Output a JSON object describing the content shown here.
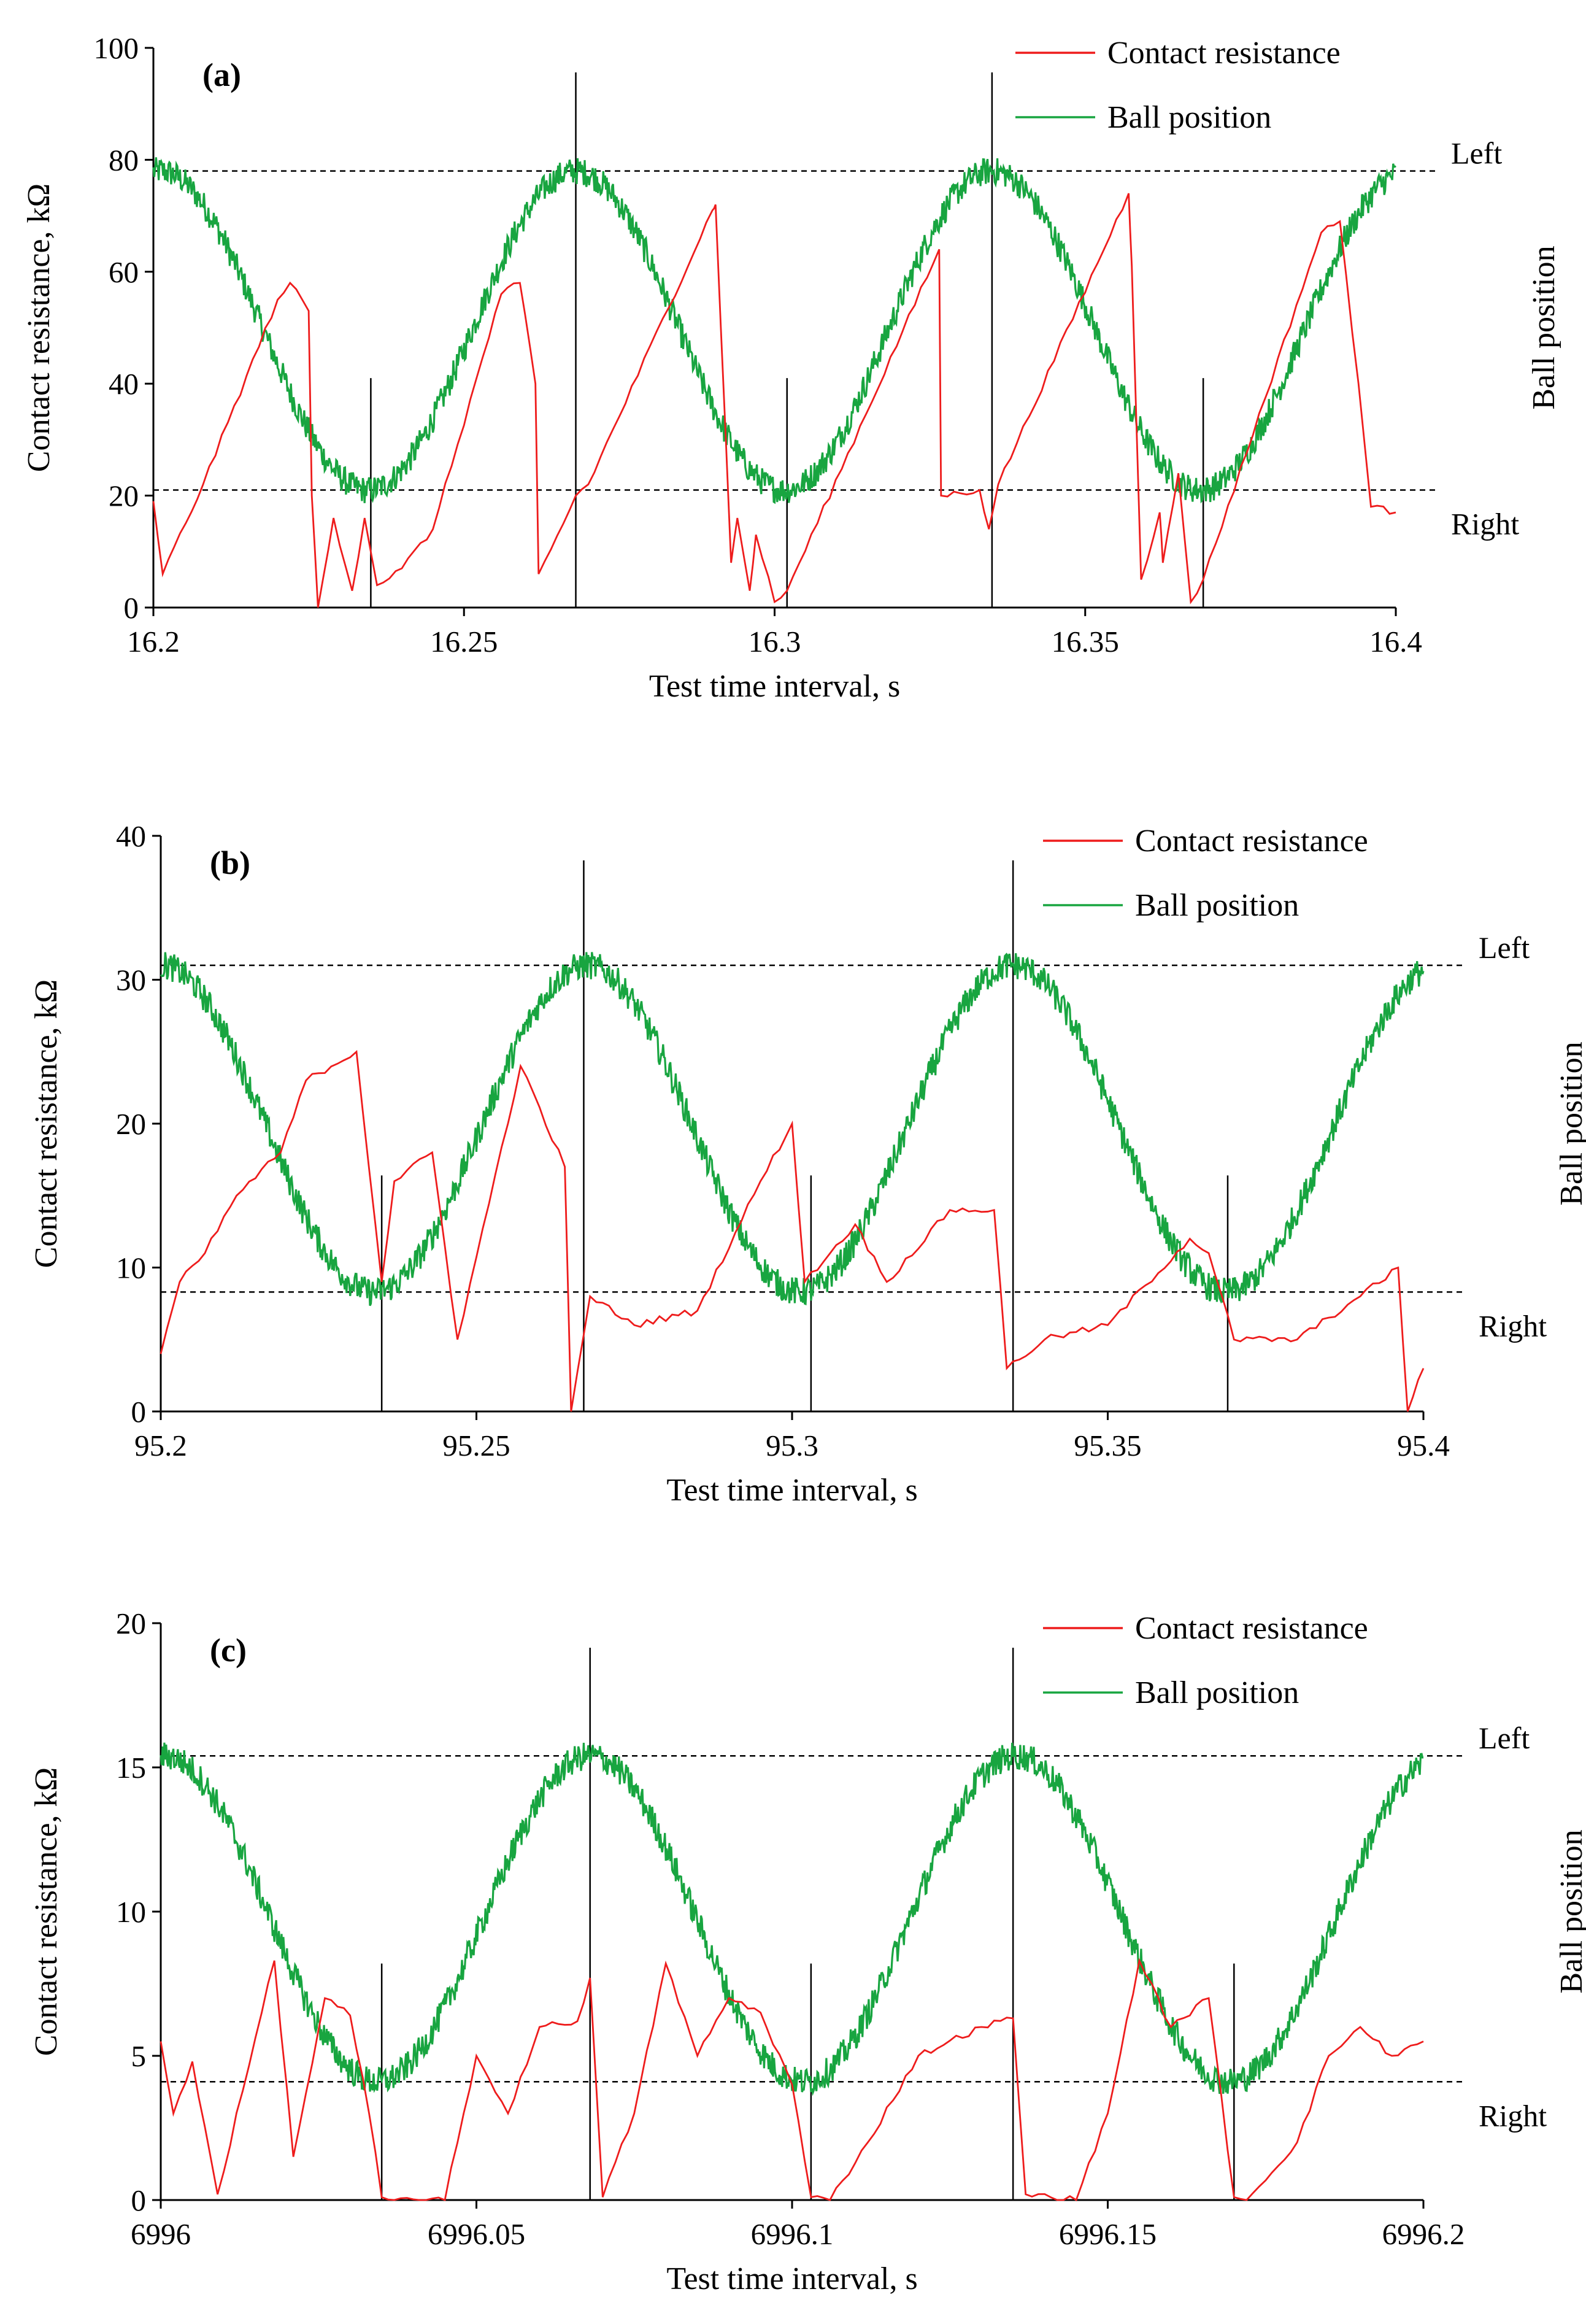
{
  "colors": {
    "contact_resistance": "#ee1c1c",
    "ball_position": "#18a540",
    "axis": "#000000",
    "markers": "#000000",
    "reference": "#000000"
  },
  "chart_data": [
    {
      "type": "line",
      "panel_label": "(a)",
      "xlabel": "Test time interval, s",
      "ylabel": "Contact resistance, kΩ",
      "y2label": "Ball position",
      "xlim": [
        16.2,
        16.4
      ],
      "ylim": [
        0,
        100
      ],
      "xticks": [
        16.2,
        16.25,
        16.3,
        16.35,
        16.4
      ],
      "xtick_labels": [
        "16.2",
        "16.25",
        "16.3",
        "16.35",
        "16.4"
      ],
      "yticks": [
        0,
        20,
        40,
        60,
        80,
        100
      ],
      "ytick_labels": [
        "0",
        "20",
        "40",
        "60",
        "80",
        "100"
      ],
      "legend": [
        "Contact resistance",
        "Ball position"
      ],
      "legend_position": "top-right",
      "reference_lines": [
        {
          "label": "Left",
          "y": 78
        },
        {
          "label": "Right",
          "y": 21
        }
      ],
      "position_extremes": {
        "left": 78,
        "right": 21
      },
      "marker_times": [
        16.235,
        16.268,
        16.302,
        16.335,
        16.369
      ],
      "series": [
        {
          "name": "Contact resistance",
          "x": [
            16.2,
            16.2015,
            16.208,
            16.22,
            16.222,
            16.225,
            16.2255,
            16.2265,
            16.229,
            16.232,
            16.234,
            16.236,
            16.24,
            16.245,
            16.256,
            16.259,
            16.2615,
            16.262,
            16.266,
            16.268,
            16.27,
            16.29,
            16.2905,
            16.293,
            16.294,
            16.296,
            16.297,
            16.3,
            16.302,
            16.3265,
            16.3268,
            16.333,
            16.3345,
            16.336,
            16.357,
            16.3575,
            16.359,
            16.362,
            16.3625,
            16.365,
            16.367,
            16.369,
            16.388,
            16.391,
            16.394,
            16.396,
            16.4
          ],
          "y": [
            19,
            6,
            22,
            55,
            58,
            53,
            20,
            0,
            16,
            3,
            16,
            4,
            7,
            14,
            56,
            58,
            40,
            6,
            15,
            20,
            22,
            71,
            72,
            8,
            16,
            3,
            13,
            1,
            3,
            64,
            20,
            21,
            14,
            22,
            74,
            61,
            5,
            17,
            8,
            24,
            1,
            5,
            67,
            69,
            40,
            18,
            17
          ]
        },
        {
          "name": "Ball position",
          "type": "sine",
          "period": 0.067,
          "peak_time": 16.268,
          "max": 78,
          "min": 21,
          "noise": 2.5
        }
      ]
    },
    {
      "type": "line",
      "panel_label": "(b)",
      "xlabel": "Test time interval, s",
      "ylabel": "Contact resistance, kΩ",
      "y2label": "Ball position",
      "xlim": [
        95.2,
        95.4
      ],
      "ylim": [
        0,
        40
      ],
      "xticks": [
        95.2,
        95.25,
        95.3,
        95.35,
        95.4
      ],
      "xtick_labels": [
        "95.2",
        "95.25",
        "95.3",
        "95.35",
        "95.4"
      ],
      "yticks": [
        0,
        10,
        20,
        30,
        40
      ],
      "ytick_labels": [
        "0",
        "10",
        "20",
        "30",
        "40"
      ],
      "legend": [
        "Contact resistance",
        "Ball position"
      ],
      "legend_position": "top-right",
      "reference_lines": [
        {
          "label": "Left",
          "y": 31
        },
        {
          "label": "Right",
          "y": 8.3
        }
      ],
      "position_extremes": {
        "left": 31,
        "right": 8.3
      },
      "marker_times": [
        95.235,
        95.267,
        95.303,
        95.335,
        95.369
      ],
      "series": [
        {
          "name": "Contact resistance",
          "x": [
            95.2,
            95.203,
            95.207,
            95.212,
            95.219,
            95.223,
            95.231,
            95.235,
            95.237,
            95.243,
            95.247,
            95.257,
            95.264,
            95.265,
            95.268,
            95.275,
            95.285,
            95.295,
            95.3,
            95.302,
            95.31,
            95.315,
            95.325,
            95.332,
            95.334,
            95.34,
            95.35,
            95.363,
            95.366,
            95.37,
            95.38,
            95.39,
            95.396,
            95.3975,
            95.4
          ],
          "y": [
            4,
            9,
            11,
            15,
            18,
            23,
            25,
            9,
            16,
            18,
            5,
            24,
            17,
            0,
            8,
            6,
            7,
            16,
            20,
            9,
            13,
            9,
            14,
            14,
            3,
            5,
            6,
            12,
            11,
            5,
            5,
            8,
            10,
            0,
            3
          ]
        },
        {
          "name": "Ball position",
          "type": "sine",
          "period": 0.0675,
          "peak_time": 95.2675,
          "max": 31,
          "min": 8.3,
          "noise": 1.0
        }
      ]
    },
    {
      "type": "line",
      "panel_label": "(c)",
      "xlabel": "Test time interval, s",
      "ylabel": "Contact resistance, kΩ",
      "y2label": "Ball position",
      "xlim": [
        6996,
        6996.2
      ],
      "ylim": [
        0,
        20
      ],
      "xticks": [
        6996,
        6996.05,
        6996.1,
        6996.15,
        6996.2
      ],
      "xtick_labels": [
        "6996",
        "6996.05",
        "6996.1",
        "6996.15",
        "6996.2"
      ],
      "yticks": [
        0,
        5,
        10,
        15,
        20
      ],
      "ytick_labels": [
        "0",
        "5",
        "10",
        "15",
        "20"
      ],
      "legend": [
        "Contact resistance",
        "Ball position"
      ],
      "legend_position": "top-right",
      "reference_lines": [
        {
          "label": "Left",
          "y": 15.4
        },
        {
          "label": "Right",
          "y": 4.1
        }
      ],
      "position_extremes": {
        "left": 15.4,
        "right": 4.1
      },
      "marker_times": [
        6996.035,
        6996.068,
        6996.103,
        6996.135,
        6996.17
      ],
      "series": [
        {
          "name": "Contact resistance",
          "x": [
            6996,
            6996.002,
            6996.005,
            6996.009,
            6996.016,
            6996.018,
            6996.021,
            6996.026,
            6996.03,
            6996.033,
            6996.035,
            6996.037,
            6996.045,
            6996.05,
            6996.055,
            6996.06,
            6996.066,
            6996.068,
            6996.07,
            6996.075,
            6996.08,
            6996.085,
            6996.09,
            6996.095,
            6996.1,
            6996.103,
            6996.106,
            6996.112,
            6996.12,
            6996.13,
            6996.135,
            6996.137,
            6996.145,
            6996.15,
            6996.155,
            6996.16,
            6996.166,
            6996.17,
            6996.172,
            6996.18,
            6996.185,
            6996.19,
            6996.195,
            6996.2
          ],
          "y": [
            5.5,
            3,
            4.8,
            0.2,
            6.5,
            8.3,
            1.5,
            7,
            6.4,
            3,
            0.1,
            0,
            0,
            5,
            3,
            6,
            6.2,
            7.7,
            0.1,
            3,
            8.2,
            5,
            7,
            6.5,
            4,
            0.1,
            0,
            2,
            5,
            6,
            6.3,
            0.2,
            0,
            3,
            8.3,
            6,
            7,
            0.1,
            0,
            2,
            5,
            6,
            5,
            5.5
          ]
        },
        {
          "name": "Ball position",
          "type": "sine",
          "period": 0.0675,
          "peak_time": 6996.068,
          "max": 15.4,
          "min": 4.1,
          "noise": 0.5
        }
      ]
    }
  ]
}
